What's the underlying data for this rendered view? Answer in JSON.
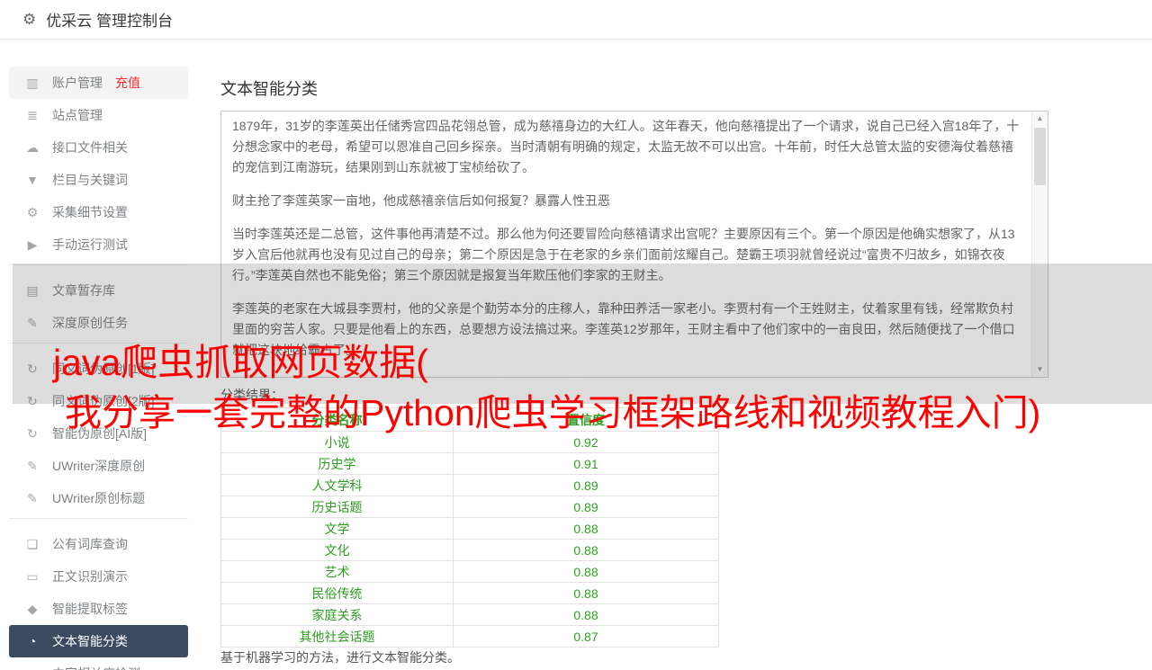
{
  "header": {
    "title": "优采云 管理控制台",
    "gear_glyph": "⚙"
  },
  "sidebar": {
    "items": [
      {
        "type": "item",
        "icon": "bar-chart-icon",
        "glyph": "▥",
        "label": "账户管理",
        "badge": "充值",
        "highlight": true
      },
      {
        "type": "item",
        "icon": "site-list-icon",
        "glyph": "≣",
        "label": "站点管理"
      },
      {
        "type": "item",
        "icon": "cloud-upload-icon",
        "glyph": "☁",
        "label": "接口文件相关"
      },
      {
        "type": "item",
        "icon": "filter-icon",
        "glyph": "▼",
        "label": "栏目与关键词"
      },
      {
        "type": "item",
        "icon": "gears-icon",
        "glyph": "⚙",
        "label": "采集细节设置"
      },
      {
        "type": "item",
        "icon": "play-icon",
        "glyph": "▶",
        "label": "手动运行测试"
      },
      {
        "type": "divider"
      },
      {
        "type": "item",
        "icon": "database-icon",
        "glyph": "▤",
        "label": "文章暂存库"
      },
      {
        "type": "item",
        "icon": "edit-icon",
        "glyph": "✎",
        "label": "深度原创任务"
      },
      {
        "type": "divider"
      },
      {
        "type": "item",
        "icon": "refresh-icon",
        "glyph": "↻",
        "label": "同义词伪原创[1版]"
      },
      {
        "type": "item",
        "icon": "refresh-icon",
        "glyph": "↻",
        "label": "同义词伪原创[2版]"
      },
      {
        "type": "item",
        "icon": "refresh-icon",
        "glyph": "↻",
        "label": "智能伪原创[AI版]"
      },
      {
        "type": "item",
        "icon": "edit-icon",
        "glyph": "✎",
        "label": "UWriter深度原创"
      },
      {
        "type": "item",
        "icon": "edit-icon",
        "glyph": "✎",
        "label": "UWriter原创标题"
      },
      {
        "type": "divider"
      },
      {
        "type": "item",
        "icon": "book-icon",
        "glyph": "❏",
        "label": "公有词库查询"
      },
      {
        "type": "item",
        "icon": "monitor-icon",
        "glyph": "▭",
        "label": "正文识别演示"
      },
      {
        "type": "item",
        "icon": "tag-icon",
        "glyph": "◆",
        "label": "智能提取标签"
      },
      {
        "type": "item",
        "icon": "pie-chart-icon",
        "glyph": "◔",
        "label": "文本智能分类",
        "selected": true
      },
      {
        "type": "item",
        "icon": "relevance-icon",
        "glyph": "◎",
        "label": "内容相关度检测"
      }
    ]
  },
  "main": {
    "page_title": "文本智能分类",
    "document_text": [
      "1879年，31岁的李莲英出任储秀宫四品花翎总管，成为慈禧身边的大红人。这年春天，他向慈禧提出了一个请求，说自己已经入宫18年了，十分想念家中的老母，希望可以恩准自己回乡探亲。当时清朝有明确的规定，太监无故不可以出宫。十年前，时任大总管太监的安德海仗着慈禧的宠信到江南游玩，结果刚到山东就被丁宝桢给砍了。",
      "财主抢了李莲英家一亩地，他成慈禧亲信后如何报复？暴露人性丑恶",
      "当时李莲英还是二总管，这件事他再清楚不过。那么他为何还要冒险向慈禧请求出宫呢？主要原因有三个。第一个原因是他确实想家了，从13岁入宫后他就再也没有见过自己的母亲；第二个原因是急于在老家的乡亲们面前炫耀自己。楚霸王项羽就曾经说过“富贵不归故乡，如锦衣夜行。”李莲英自然也不能免俗；第三个原因就是报复当年欺压他们李家的王财主。",
      "李莲英的老家在大城县李贾村，他的父亲是个勤劳本分的庄稼人，靠种田养活一家老小。李贾村有一个王姓财主，仗着家里有钱，经常欺负村里面的穷苦人家。只要是他看上的东西，总要想方设法搞过来。李莲英12岁那年，王财主看中了他们家中的一亩良田，然后随便找了一个借口就把这块地给霸占了。",
      "财主抢了李莲英家一亩地，他成慈禧亲信后如何报复？暴露人性丑恶"
    ],
    "result_label": "分类结果：",
    "table": {
      "headers": [
        "分类名称",
        "置信度"
      ],
      "rows": [
        [
          "小说",
          "0.92"
        ],
        [
          "历史学",
          "0.91"
        ],
        [
          "人文学科",
          "0.89"
        ],
        [
          "历史话题",
          "0.89"
        ],
        [
          "文学",
          "0.88"
        ],
        [
          "文化",
          "0.88"
        ],
        [
          "艺术",
          "0.88"
        ],
        [
          "民俗传统",
          "0.88"
        ],
        [
          "家庭关系",
          "0.88"
        ],
        [
          "其他社会话题",
          "0.87"
        ]
      ],
      "text_color": "#2f9d22"
    },
    "footer_note": "基于机器学习的方法，进行文本智能分类。"
  },
  "overlay": {
    "watermark_lines": [
      "java爬虫抓取网页数据(",
      "我分享一套完整的Python爬虫学习框架路线和视频教程入门)"
    ],
    "color": "#ff0000"
  },
  "colors": {
    "selected_item_bg": "#3b4a60",
    "badge_red": "#f52b2b",
    "sidebar_text": "#7e8285"
  }
}
